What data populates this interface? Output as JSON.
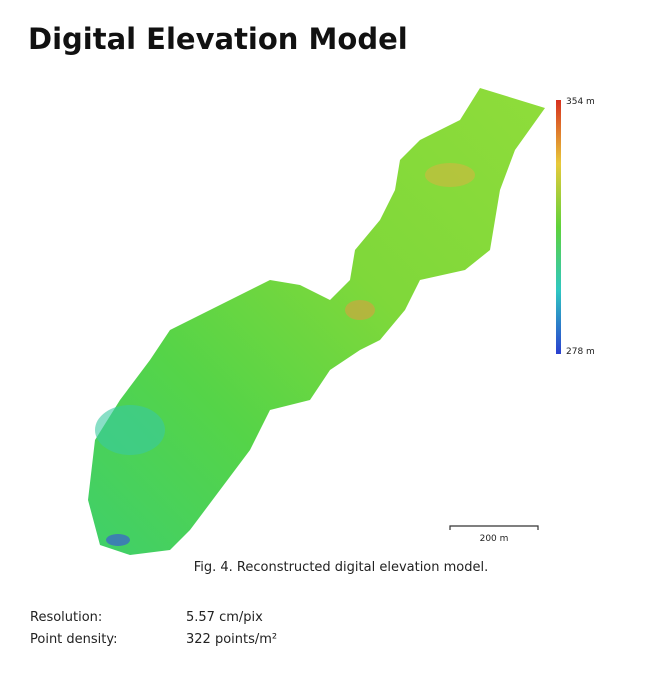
{
  "header": {
    "title": "Digital Elevation Model"
  },
  "figure": {
    "legend": {
      "max": "354 m",
      "min": "278 m"
    },
    "scale_bar": "200 m",
    "caption": "Fig. 4. Reconstructed digital elevation model."
  },
  "table": {
    "rows": [
      [
        "Resolution:",
        "5.57 cm/pix"
      ],
      [
        "Point density:",
        "322 points/m²"
      ]
    ]
  }
}
